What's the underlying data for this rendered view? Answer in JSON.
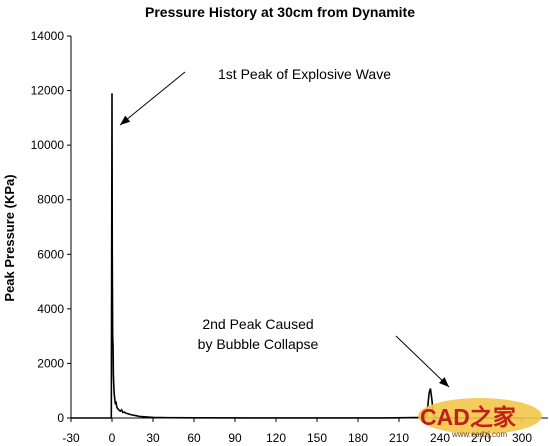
{
  "chart_data": {
    "type": "line",
    "title": "Pressure History at 30cm from Dynamite",
    "xlabel": "",
    "ylabel": "Peak Pressure (KPa)",
    "xlim": [
      -30,
      300
    ],
    "ylim": [
      0,
      14000
    ],
    "xticks": [
      -30,
      0,
      30,
      60,
      90,
      120,
      150,
      180,
      210,
      240,
      270,
      300
    ],
    "yticks": [
      0,
      2000,
      4000,
      6000,
      8000,
      10000,
      12000,
      14000
    ],
    "grid": false,
    "series": [
      {
        "x": [
          -30,
          -1,
          -0.5,
          0,
          0.1,
          0.2,
          0.5,
          0.8,
          1,
          1.3,
          1.6,
          2,
          2.5,
          3,
          3.5,
          4,
          5,
          6,
          7,
          8,
          9,
          10,
          12,
          14,
          16,
          18,
          20,
          25,
          30,
          40,
          60,
          100,
          150,
          200,
          230,
          231,
          232,
          233,
          234,
          235,
          236,
          240,
          280,
          300
        ],
        "y": [
          0,
          0,
          0,
          11900,
          9000,
          6000,
          3000,
          2600,
          1600,
          1200,
          900,
          700,
          500,
          600,
          400,
          350,
          300,
          250,
          300,
          200,
          220,
          180,
          150,
          120,
          100,
          80,
          60,
          40,
          20,
          10,
          5,
          2,
          1,
          1,
          20,
          400,
          900,
          1080,
          700,
          200,
          20,
          0,
          0,
          0
        ]
      }
    ],
    "annotations": [
      {
        "text": "1st Peak of Explosive Wave",
        "x": 0.3,
        "y": 11600
      },
      {
        "text_lines": [
          "2nd Peak Caused",
          "by Bubble Collapse"
        ],
        "x": 233,
        "y": 1080
      }
    ]
  },
  "watermark": {
    "text": "CAD之家",
    "url": "www.cadzj.com"
  }
}
